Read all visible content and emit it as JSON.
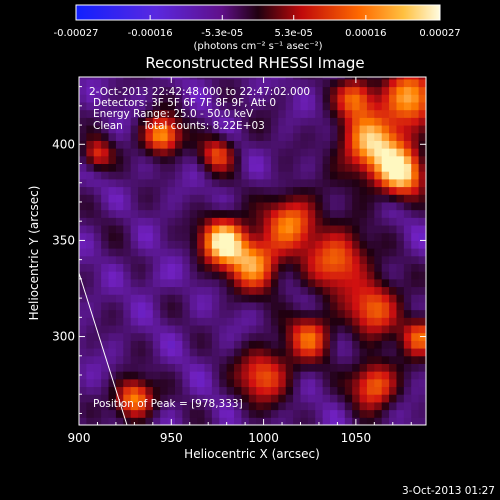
{
  "chart_data": {
    "type": "heatmap",
    "title": "Reconstructed RHESSI Image",
    "xlabel": "Heliocentric X (arcsec)",
    "ylabel": "Heliocentric Y (arcsec)",
    "xlim": [
      900,
      1088
    ],
    "ylim": [
      254,
      435
    ],
    "x_ticks": [
      900,
      950,
      1000,
      1050
    ],
    "x_tick_labels": [
      "900",
      "950",
      "1000",
      "1050"
    ],
    "y_ticks": [
      300,
      350,
      400
    ],
    "y_tick_labels": [
      "300",
      "350",
      "400"
    ],
    "colorbar": {
      "range": [
        -0.00027,
        0.00027
      ],
      "ticks": [
        -0.00027,
        -0.00016,
        -5.3e-05,
        5.3e-05,
        0.00016,
        0.00027
      ],
      "tick_labels": [
        "-0.00027",
        "-0.00016",
        "-5.3e-05",
        "5.3e-05",
        "0.00016",
        "0.00027"
      ],
      "units": "(photons cm⁻² s⁻¹ asec⁻²)",
      "colors": [
        "#1020ff",
        "#7020c0",
        "#200010",
        "#d01010",
        "#ff8000",
        "#fff8c0"
      ]
    },
    "annotations": [
      "2-Oct-2013 22:42:48.000 to 22:47:02.000",
      "Detectors: 3F 5F 6F 7F 8F 9F, Att 0",
      "Energy Range: 25.0 - 50.0 keV",
      "Clean      Total counts: 8.22E+03"
    ],
    "peak_label": "Position of Peak = [978,333]",
    "peak": [
      978,
      333
    ],
    "limb_line": [
      [
        900,
        333
      ],
      [
        926,
        254
      ]
    ],
    "intensity_blobs": [
      {
        "x": 978,
        "y": 350,
        "r": 12,
        "v": 0.00027
      },
      {
        "x": 995,
        "y": 338,
        "r": 14,
        "v": 0.00018
      },
      {
        "x": 1015,
        "y": 360,
        "r": 14,
        "v": 0.00015
      },
      {
        "x": 1040,
        "y": 340,
        "r": 16,
        "v": 0.00014
      },
      {
        "x": 1060,
        "y": 315,
        "r": 14,
        "v": 0.00013
      },
      {
        "x": 1025,
        "y": 300,
        "r": 12,
        "v": 0.00012
      },
      {
        "x": 945,
        "y": 405,
        "r": 10,
        "v": 0.0002
      },
      {
        "x": 1060,
        "y": 400,
        "r": 18,
        "v": 0.00022
      },
      {
        "x": 1080,
        "y": 425,
        "r": 14,
        "v": 0.00018
      },
      {
        "x": 1050,
        "y": 425,
        "r": 10,
        "v": 0.00012
      },
      {
        "x": 1075,
        "y": 385,
        "r": 12,
        "v": 0.0002
      },
      {
        "x": 930,
        "y": 268,
        "r": 10,
        "v": 0.00018
      },
      {
        "x": 1000,
        "y": 280,
        "r": 14,
        "v": 0.00012
      },
      {
        "x": 1060,
        "y": 275,
        "r": 12,
        "v": 0.00015
      },
      {
        "x": 1085,
        "y": 300,
        "r": 10,
        "v": 0.00014
      },
      {
        "x": 975,
        "y": 395,
        "r": 9,
        "v": 9e-05
      },
      {
        "x": 910,
        "y": 395,
        "r": 8,
        "v": 8e-05
      },
      {
        "x": 940,
        "y": 330,
        "r": 8,
        "v": -0.00016
      },
      {
        "x": 960,
        "y": 375,
        "r": 12,
        "v": -0.00012
      },
      {
        "x": 920,
        "y": 360,
        "r": 10,
        "v": -0.0001
      },
      {
        "x": 1000,
        "y": 410,
        "r": 12,
        "v": -0.0001
      }
    ]
  },
  "footer": {
    "timestamp": "3-Oct-2013 01:27"
  }
}
